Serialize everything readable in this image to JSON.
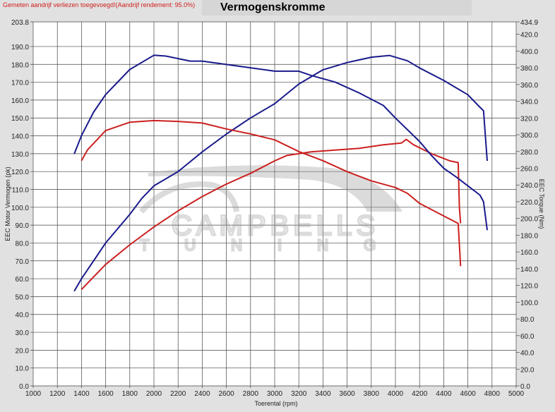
{
  "note": "Gemeten aandrijf verliezen toegevoegd!(Aandrijf rendement: 95.0%)",
  "watermark": {
    "line1": "CAMPBELLS",
    "line2": "TUNING"
  },
  "chart_data": {
    "type": "line",
    "title": "Vermogenskromme",
    "xlabel": "Toerental (rpm)",
    "ylabel": "EEC Motor Vermogen (pk)",
    "y2label": "EEC Torque (Nm)",
    "xlim": [
      1000,
      5000
    ],
    "ylim": [
      0,
      203.8
    ],
    "y2lim": [
      0,
      434.9
    ],
    "grid": true,
    "xticks": [
      "1000",
      "1200",
      "1400",
      "1600",
      "1800",
      "2000",
      "2200",
      "2400",
      "2600",
      "2800",
      "3000",
      "3200",
      "3400",
      "3600",
      "3800",
      "4000",
      "4200",
      "4400",
      "4600",
      "4800",
      "5000"
    ],
    "yticks": [
      "0.0",
      "10.0",
      "20.0",
      "30.0",
      "40.0",
      "50.0",
      "60.0",
      "70.0",
      "80.0",
      "90.0",
      "100.0",
      "110.0",
      "120.0",
      "130.0",
      "140.0",
      "150.0",
      "160.0",
      "170.0",
      "180.0",
      "190.0",
      "203.8"
    ],
    "y2ticks": [
      "0.0",
      "20.0",
      "40.0",
      "60.0",
      "80.0",
      "100.0",
      "120.0",
      "140.0",
      "160.0",
      "180.0",
      "200.0",
      "220.0",
      "240.0",
      "260.0",
      "280.0",
      "300.0",
      "320.0",
      "340.0",
      "360.0",
      "380.0",
      "400.0",
      "420.0",
      "434.9"
    ],
    "series": [
      {
        "axis": "left",
        "color": "#1a1a8c",
        "x": [
          1340,
          1400,
          1600,
          1800,
          1900,
          2000,
          2200,
          2400,
          2600,
          2800,
          3000,
          3200,
          3400,
          3600,
          3800,
          3950,
          4100,
          4200,
          4400,
          4600,
          4700,
          4730,
          4750,
          4760
        ],
        "y": [
          53,
          60,
          80,
          96,
          105,
          112,
          120,
          131,
          141,
          150,
          158,
          169,
          177,
          181,
          184,
          185,
          182,
          178,
          171,
          163,
          156,
          154,
          135,
          126
        ]
      },
      {
        "axis": "left",
        "color": "#cc2020",
        "x": [
          1400,
          1600,
          1800,
          2000,
          2200,
          2400,
          2600,
          2800,
          3000,
          3100,
          3300,
          3500,
          3700,
          3900,
          4050,
          4090,
          4150,
          4300,
          4450,
          4520,
          4530,
          4540
        ],
        "y": [
          54,
          68,
          79,
          89,
          98,
          106,
          113,
          119,
          126,
          129,
          131,
          132,
          133,
          135,
          136,
          138,
          135,
          130,
          126,
          125,
          100,
          91
        ]
      },
      {
        "axis": "right",
        "color": "#1a1a8c",
        "x": [
          1340,
          1400,
          1500,
          1600,
          1800,
          2000,
          2100,
          2300,
          2400,
          2600,
          2800,
          3000,
          3200,
          3300,
          3500,
          3700,
          3900,
          4000,
          4200,
          4300,
          4400,
          4500,
          4600,
          4700,
          4730,
          4760
        ],
        "y": [
          277,
          299,
          327,
          348,
          378,
          395,
          394,
          388,
          388,
          384,
          380,
          376,
          376,
          371,
          363,
          350,
          335,
          320,
          292,
          275,
          260,
          250,
          239,
          228,
          220,
          186
        ]
      },
      {
        "axis": "right",
        "color": "#cc2020",
        "x": [
          1400,
          1450,
          1600,
          1800,
          2000,
          2200,
          2400,
          2600,
          2800,
          3000,
          3200,
          3400,
          3600,
          3800,
          4000,
          4100,
          4200,
          4400,
          4520,
          4540
        ],
        "y": [
          269,
          282,
          305,
          315,
          317,
          316,
          314,
          307,
          301,
          294,
          280,
          269,
          256,
          245,
          237,
          230,
          218,
          203,
          194,
          143
        ]
      }
    ]
  }
}
